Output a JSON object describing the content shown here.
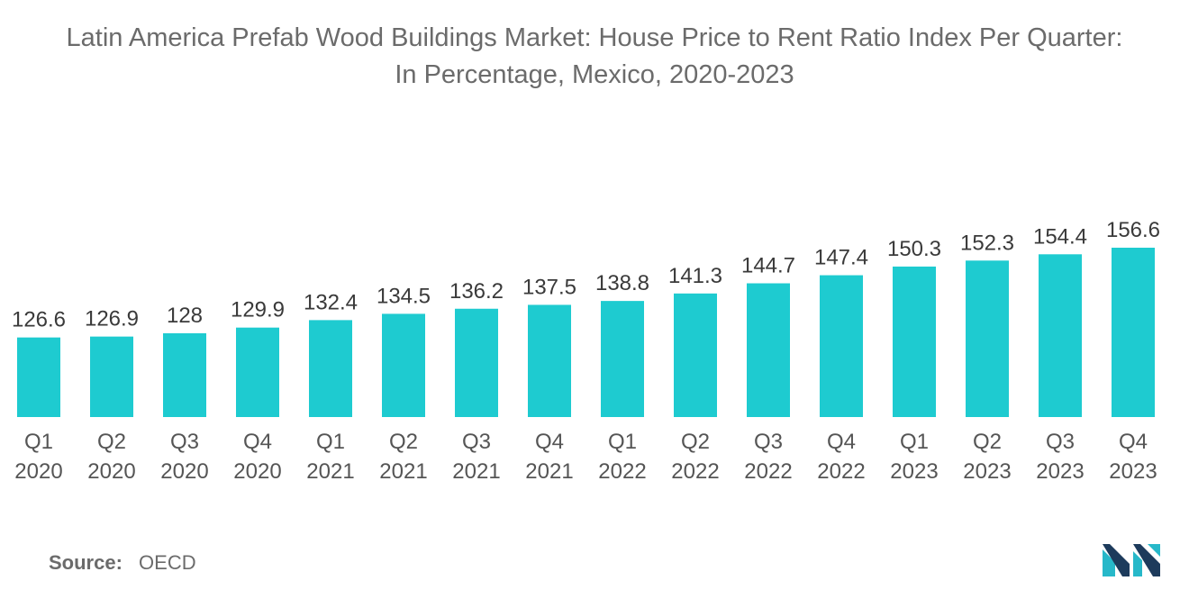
{
  "title": {
    "line1": "Latin America Prefab Wood Buildings Market: House Price to Rent Ratio Index Per Quarter:",
    "line2": "In Percentage, Mexico, 2020-2023"
  },
  "chart_data": {
    "type": "bar",
    "title": "Latin America Prefab Wood Buildings Market: House Price to Rent Ratio Index Per Quarter: In Percentage, Mexico, 2020-2023",
    "categories": [
      {
        "quarter": "Q1",
        "year": "2020"
      },
      {
        "quarter": "Q2",
        "year": "2020"
      },
      {
        "quarter": "Q3",
        "year": "2020"
      },
      {
        "quarter": "Q4",
        "year": "2020"
      },
      {
        "quarter": "Q1",
        "year": "2021"
      },
      {
        "quarter": "Q2",
        "year": "2021"
      },
      {
        "quarter": "Q3",
        "year": "2021"
      },
      {
        "quarter": "Q4",
        "year": "2021"
      },
      {
        "quarter": "Q1",
        "year": "2022"
      },
      {
        "quarter": "Q2",
        "year": "2022"
      },
      {
        "quarter": "Q3",
        "year": "2022"
      },
      {
        "quarter": "Q4",
        "year": "2022"
      },
      {
        "quarter": "Q1",
        "year": "2023"
      },
      {
        "quarter": "Q2",
        "year": "2023"
      },
      {
        "quarter": "Q3",
        "year": "2023"
      },
      {
        "quarter": "Q4",
        "year": "2023"
      }
    ],
    "values": [
      126.6,
      126.9,
      128,
      129.9,
      132.4,
      134.5,
      136.2,
      137.5,
      138.8,
      141.3,
      144.7,
      147.4,
      150.3,
      152.3,
      154.4,
      156.6
    ],
    "value_labels": [
      "126.6",
      "126.9",
      "128",
      "129.9",
      "132.4",
      "134.5",
      "136.2",
      "137.5",
      "138.8",
      "141.3",
      "144.7",
      "147.4",
      "150.3",
      "152.3",
      "154.4",
      "156.6"
    ],
    "xlabel": "",
    "ylabel": "",
    "grid": false,
    "bar_color": "#1ecbd0"
  },
  "source": {
    "label": "Source:",
    "value": "OECD"
  },
  "logo": {
    "icon": "mordor-intelligence-logo-icon",
    "colors": [
      "#1d3b5c",
      "#27b8c9"
    ]
  }
}
